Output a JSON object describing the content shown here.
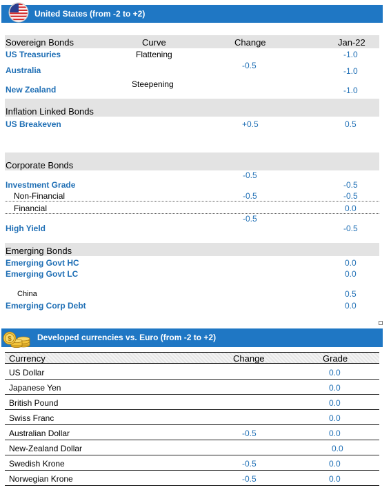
{
  "banner1": {
    "title": "United States (from -2 to +2)"
  },
  "sovereign": {
    "title": "Sovereign Bonds",
    "col_curve": "Curve",
    "col_change": "Change",
    "col_date": "Jan-22",
    "us_treasuries": {
      "name": "US Treasuries",
      "curve": "Flattening",
      "value": "-1.0"
    },
    "australia": {
      "name": "Australia",
      "value": "-1.0"
    },
    "new_zealand": {
      "name": "New Zealand",
      "curve": "Steepening",
      "value": "-1.0"
    },
    "group_change": "-0.5"
  },
  "inflation": {
    "title": "Inflation Linked Bonds",
    "us_breakeven": {
      "name": "US Breakeven",
      "change": "+0.5",
      "value": "0.5"
    }
  },
  "corporate": {
    "title": "Corporate Bonds",
    "ig_change_top": "-0.5",
    "investment_grade": {
      "name": "Investment Grade",
      "value": "-0.5"
    },
    "non_financial": {
      "name": "Non-Financial",
      "change": "-0.5",
      "value": "-0.5"
    },
    "financial": {
      "name": "Financial",
      "value": "0.0"
    },
    "hy_change": "-0.5",
    "high_yield": {
      "name": "High Yield",
      "value": "-0.5"
    }
  },
  "emerging": {
    "title": "Emerging Bonds",
    "govt_hc": {
      "name": "Emerging Govt HC",
      "value": "0.0"
    },
    "govt_lc": {
      "name": "Emerging Govt LC",
      "value": "0.0"
    },
    "china": {
      "name": "China",
      "value": "0.5"
    },
    "corp_debt": {
      "name": "Emerging Corp Debt",
      "value": "0.0"
    }
  },
  "banner2": {
    "title": "Developed currencies vs. Euro (from -2 to +2)"
  },
  "currencies": {
    "col_currency": "Currency",
    "col_change": "Change",
    "col_grade": "Grade",
    "rows": [
      {
        "name": "US Dollar",
        "change": "",
        "grade": "0.0"
      },
      {
        "name": "Japanese Yen",
        "change": "",
        "grade": "0.0"
      },
      {
        "name": "British Pound",
        "change": "",
        "grade": "0.0"
      },
      {
        "name": "Swiss Franc",
        "change": "",
        "grade": "0.0"
      },
      {
        "name": "Australian Dollar",
        "change": "-0.5",
        "grade": "0.0"
      },
      {
        "name": "New-Zealand Dollar",
        "change": "",
        "grade": "0.0"
      },
      {
        "name": "Swedish Krone",
        "change": "-0.5",
        "grade": "0.0"
      },
      {
        "name": "Norwegian Krone",
        "change": "-0.5",
        "grade": "0.0"
      }
    ]
  },
  "colors": {
    "banner": "#1f77c4",
    "accent": "#1f6fb5",
    "band": "#e3e3e3"
  },
  "icons": {
    "flag": "us-flag-icon",
    "coins": "coins-icon"
  }
}
